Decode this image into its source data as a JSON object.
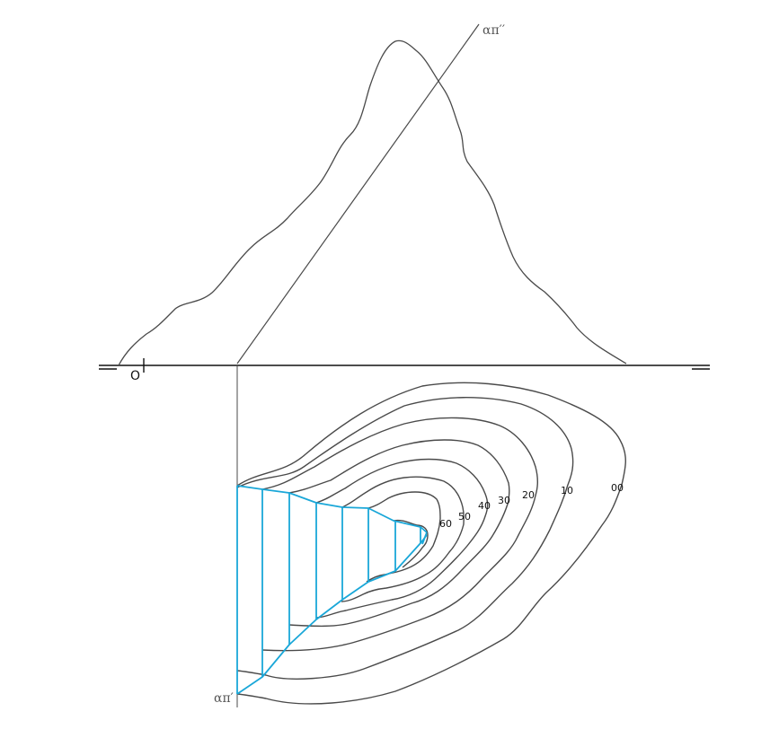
{
  "labels": {
    "origin": "O",
    "trace_vertical": "απ′′",
    "trace_horizontal": "απ′"
  },
  "contours": [
    {
      "label": "00"
    },
    {
      "label": "10"
    },
    {
      "label": "20"
    },
    {
      "label": "30"
    },
    {
      "label": "40"
    },
    {
      "label": "50"
    },
    {
      "label": "60"
    }
  ],
  "colors": {
    "line": "#4a4a4a",
    "axis": "#111111",
    "construction": "#1aa7d8"
  }
}
